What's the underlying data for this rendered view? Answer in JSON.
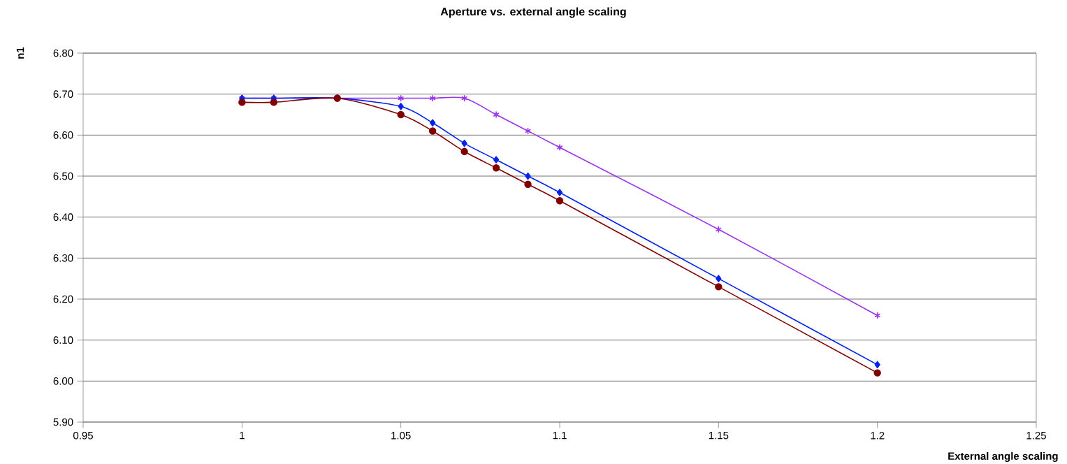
{
  "chart_data": {
    "type": "line",
    "title": "Aperture vs. external angle scaling",
    "xlabel": "External angle scaling",
    "ylabel": "n1",
    "xlim": [
      0.95,
      1.25
    ],
    "xticks": [
      0.95,
      1,
      1.05,
      1.1,
      1.15,
      1.2,
      1.25
    ],
    "ylim": [
      5.9,
      6.8
    ],
    "yticks": [
      {
        "value": 5.9,
        "label": "5.90"
      },
      {
        "value": 6.0,
        "label": "6.00"
      },
      {
        "value": 6.1,
        "label": "6.10"
      },
      {
        "value": 6.2,
        "label": "6.20"
      },
      {
        "value": 6.3,
        "label": "6.30"
      },
      {
        "value": 6.4,
        "label": "6.40"
      },
      {
        "value": 6.5,
        "label": "6.50"
      },
      {
        "value": 6.6,
        "label": "6.60"
      },
      {
        "value": 6.7,
        "label": "6.70"
      },
      {
        "value": 6.8,
        "label": "6.80"
      }
    ],
    "grid": "y",
    "line_style": "solid",
    "x": [
      1,
      1.01,
      1.03,
      1.05,
      1.06,
      1.07,
      1.08,
      1.09,
      1.1,
      1.15,
      1.2
    ],
    "series": [
      {
        "color": "#9933ee",
        "marker": "cross",
        "values": [
          6.69,
          6.69,
          6.69,
          6.69,
          6.69,
          6.69,
          6.65,
          6.61,
          6.57,
          6.37,
          6.16
        ]
      },
      {
        "color": "#0022ee",
        "marker": "diamond",
        "values": [
          6.69,
          6.69,
          6.69,
          6.67,
          6.63,
          6.58,
          6.54,
          6.5,
          6.46,
          6.25,
          6.04
        ]
      },
      {
        "color": "#800000",
        "marker": "circle",
        "values": [
          6.68,
          6.68,
          6.69,
          6.65,
          6.61,
          6.56,
          6.52,
          6.48,
          6.44,
          6.23,
          6.02
        ]
      }
    ]
  }
}
